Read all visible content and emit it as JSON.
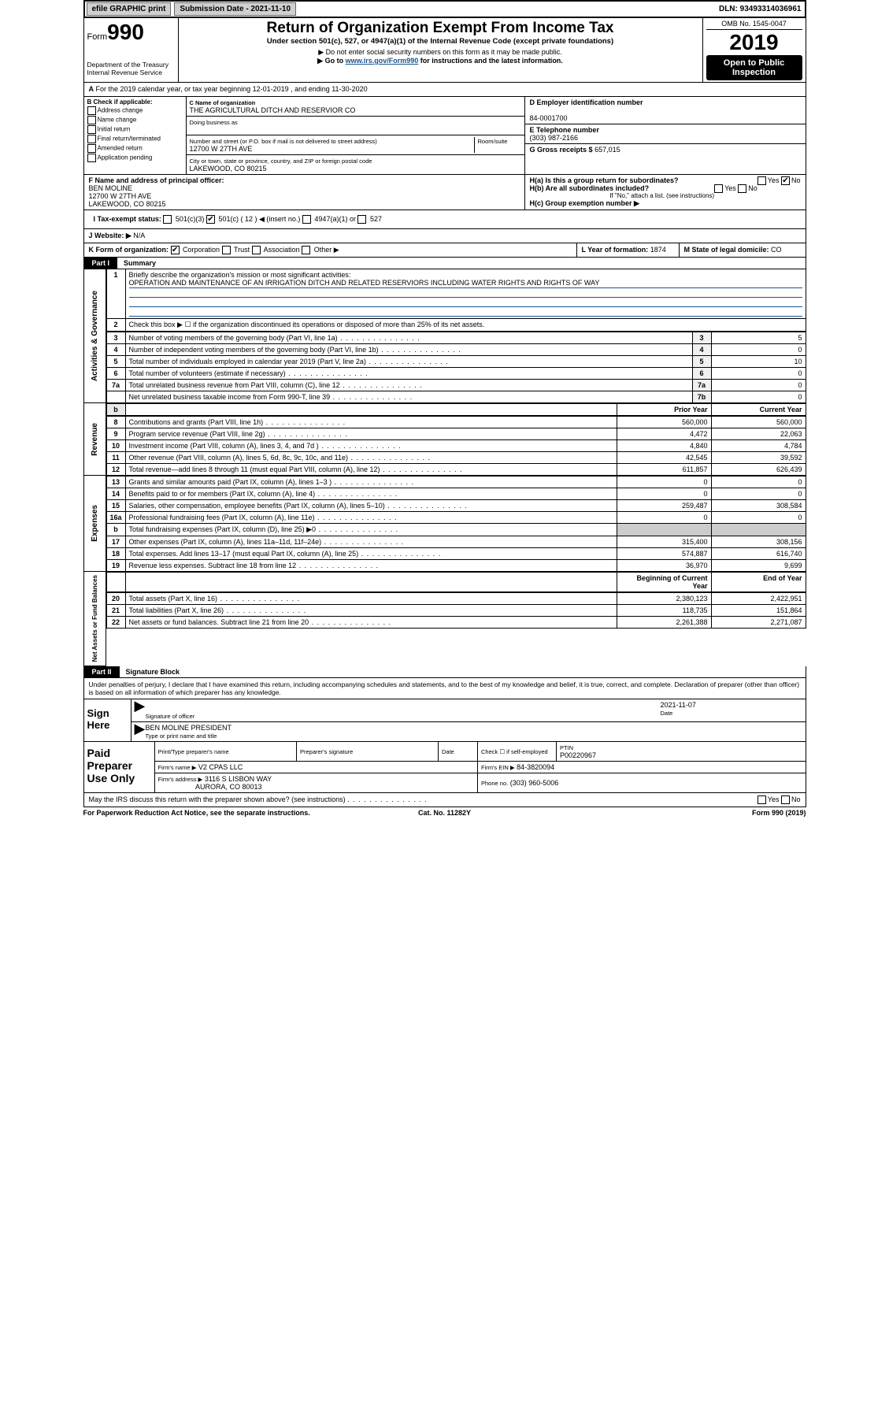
{
  "topbar": {
    "efile": "efile GRAPHIC print",
    "subdate_lbl": "Submission Date - 2021-11-10",
    "dln_lbl": "DLN: 93493314036961"
  },
  "header": {
    "form_prefix": "Form",
    "form_num": "990",
    "dept": "Department of the Treasury",
    "irs": "Internal Revenue Service",
    "title": "Return of Organization Exempt From Income Tax",
    "subtitle": "Under section 501(c), 527, or 4947(a)(1) of the Internal Revenue Code (except private foundations)",
    "note1": "▶ Do not enter social security numbers on this form as it may be made public.",
    "note2": "▶ Go to www.irs.gov/Form990 for instructions and the latest information.",
    "link": "www.irs.gov/Form990",
    "omb": "OMB No. 1545-0047",
    "year": "2019",
    "open": "Open to Public Inspection"
  },
  "periods": {
    "a_line": "For the 2019 calendar year, or tax year beginning 12-01-2019    , and ending 11-30-2020"
  },
  "boxB": {
    "hdr": "B Check if applicable:",
    "items": [
      "Address change",
      "Name change",
      "Initial return",
      "Final return/terminated",
      "Amended return",
      "Application pending"
    ]
  },
  "boxC": {
    "lbl_name": "C Name of organization",
    "org": "THE AGRICULTURAL DITCH AND RESERVIOR CO",
    "dba_lbl": "Doing business as",
    "addr_lbl": "Number and street (or P.O. box if mail is not delivered to street address)",
    "room_lbl": "Room/suite",
    "addr": "12700 W 27TH AVE",
    "city_lbl": "City or town, state or province, country, and ZIP or foreign postal code",
    "city": "LAKEWOOD, CO  80215"
  },
  "boxD": {
    "lbl": "D Employer identification number",
    "val": "84-0001700"
  },
  "boxE": {
    "lbl": "E Telephone number",
    "val": "(303) 987-2166"
  },
  "boxG": {
    "lbl": "G Gross receipts $",
    "val": "657,015"
  },
  "boxF": {
    "lbl": "F  Name and address of principal officer:",
    "name": "BEN MOLINE",
    "addr1": "12700 W 27TH AVE",
    "addr2": "LAKEWOOD, CO  80215"
  },
  "boxH": {
    "a": "H(a)  Is this a group return for subordinates?",
    "b": "H(b)  Are all subordinates included?",
    "b_note": "If \"No,\" attach a list. (see instructions)",
    "c": "H(c)  Group exemption number ▶",
    "yes": "Yes",
    "no": "No"
  },
  "rowI": {
    "lbl": "I   Tax-exempt status:",
    "o1": "501(c)(3)",
    "o2": "501(c) ( 12 ) ◀ (insert no.)",
    "o3": "4947(a)(1) or",
    "o4": "527"
  },
  "rowJ": {
    "lbl": "J   Website: ▶",
    "val": "N/A"
  },
  "rowK": {
    "lbl": "K Form of organization:",
    "o1": "Corporation",
    "o2": "Trust",
    "o3": "Association",
    "o4": "Other ▶"
  },
  "rowL": {
    "lbl": "L Year of formation:",
    "val": "1874"
  },
  "rowM": {
    "lbl": "M State of legal domicile:",
    "val": "CO"
  },
  "part1": {
    "tab": "Part I",
    "title": "Summary"
  },
  "summary": {
    "l1_lbl": "Briefly describe the organization's mission or most significant activities:",
    "l1_val": "OPERATION AND MAINTENANCE OF AN IRRIGATION DITCH AND RELATED RESERVIORS INCLUDING WATER RIGHTS AND RIGHTS OF WAY",
    "l2": "Check this box ▶ ☐  if the organization discontinued its operations or disposed of more than 25% of its net assets.",
    "rows_gov": [
      {
        "n": "3",
        "d": "Number of voting members of the governing body (Part VI, line 1a)",
        "m": "3",
        "v": "5"
      },
      {
        "n": "4",
        "d": "Number of independent voting members of the governing body (Part VI, line 1b)",
        "m": "4",
        "v": "0"
      },
      {
        "n": "5",
        "d": "Total number of individuals employed in calendar year 2019 (Part V, line 2a)",
        "m": "5",
        "v": "10"
      },
      {
        "n": "6",
        "d": "Total number of volunteers (estimate if necessary)",
        "m": "6",
        "v": "0"
      },
      {
        "n": "7a",
        "d": "Total unrelated business revenue from Part VIII, column (C), line 12",
        "m": "7a",
        "v": "0"
      },
      {
        "n": "",
        "d": "Net unrelated business taxable income from Form 990-T, line 39",
        "m": "7b",
        "v": "0"
      }
    ],
    "hdr_prior": "Prior Year",
    "hdr_curr": "Current Year",
    "rows_rev": [
      {
        "n": "8",
        "d": "Contributions and grants (Part VIII, line 1h)",
        "p": "560,000",
        "c": "560,000"
      },
      {
        "n": "9",
        "d": "Program service revenue (Part VIII, line 2g)",
        "p": "4,472",
        "c": "22,063"
      },
      {
        "n": "10",
        "d": "Investment income (Part VIII, column (A), lines 3, 4, and 7d )",
        "p": "4,840",
        "c": "4,784"
      },
      {
        "n": "11",
        "d": "Other revenue (Part VIII, column (A), lines 5, 6d, 8c, 9c, 10c, and 11e)",
        "p": "42,545",
        "c": "39,592"
      },
      {
        "n": "12",
        "d": "Total revenue—add lines 8 through 11 (must equal Part VIII, column (A), line 12)",
        "p": "611,857",
        "c": "626,439"
      }
    ],
    "rows_exp": [
      {
        "n": "13",
        "d": "Grants and similar amounts paid (Part IX, column (A), lines 1–3 )",
        "p": "0",
        "c": "0"
      },
      {
        "n": "14",
        "d": "Benefits paid to or for members (Part IX, column (A), line 4)",
        "p": "0",
        "c": "0"
      },
      {
        "n": "15",
        "d": "Salaries, other compensation, employee benefits (Part IX, column (A), lines 5–10)",
        "p": "259,487",
        "c": "308,584"
      },
      {
        "n": "16a",
        "d": "Professional fundraising fees (Part IX, column (A), line 11e)",
        "p": "0",
        "c": "0"
      },
      {
        "n": "b",
        "d": "Total fundraising expenses (Part IX, column (D), line 25) ▶0",
        "p": "",
        "c": ""
      },
      {
        "n": "17",
        "d": "Other expenses (Part IX, column (A), lines 11a–11d, 11f–24e)",
        "p": "315,400",
        "c": "308,156"
      },
      {
        "n": "18",
        "d": "Total expenses. Add lines 13–17 (must equal Part IX, column (A), line 25)",
        "p": "574,887",
        "c": "616,740"
      },
      {
        "n": "19",
        "d": "Revenue less expenses. Subtract line 18 from line 12",
        "p": "36,970",
        "c": "9,699"
      }
    ],
    "hdr_beg": "Beginning of Current Year",
    "hdr_end": "End of Year",
    "rows_net": [
      {
        "n": "20",
        "d": "Total assets (Part X, line 16)",
        "p": "2,380,123",
        "c": "2,422,951"
      },
      {
        "n": "21",
        "d": "Total liabilities (Part X, line 26)",
        "p": "118,735",
        "c": "151,864"
      },
      {
        "n": "22",
        "d": "Net assets or fund balances. Subtract line 21 from line 20",
        "p": "2,261,388",
        "c": "2,271,087"
      }
    ]
  },
  "side_labels": {
    "gov": "Activities & Governance",
    "rev": "Revenue",
    "exp": "Expenses",
    "net": "Net Assets or Fund Balances"
  },
  "part2": {
    "tab": "Part II",
    "title": "Signature Block"
  },
  "penalties": "Under penalties of perjury, I declare that I have examined this return, including accompanying schedules and statements, and to the best of my knowledge and belief, it is true, correct, and complete. Declaration of preparer (other than officer) is based on all information of which preparer has any knowledge.",
  "sign": {
    "here": "Sign Here",
    "sig_lbl": "Signature of officer",
    "date_lbl": "Date",
    "date_val": "2021-11-07",
    "name_val": "BEN MOLINE PRESIDENT",
    "name_lbl": "Type or print name and title"
  },
  "prep": {
    "title": "Paid Preparer Use Only",
    "h1": "Print/Type preparer's name",
    "h2": "Preparer's signature",
    "h3": "Date",
    "h4": "Check ☐ if self-employed",
    "h5_lbl": "PTIN",
    "h5_val": "P00220967",
    "firm_name_lbl": "Firm's name     ▶",
    "firm_name": "V2 CPAS LLC",
    "firm_ein_lbl": "Firm's EIN ▶",
    "firm_ein": "84-3820094",
    "firm_addr_lbl": "Firm's address ▶",
    "firm_addr1": "3116 S LISBON WAY",
    "firm_addr2": "AURORA, CO  80013",
    "phone_lbl": "Phone no.",
    "phone": "(303) 960-5006"
  },
  "discuss": {
    "q": "May the IRS discuss this return with the preparer shown above? (see instructions)",
    "yes": "Yes",
    "no": "No"
  },
  "footer": {
    "l": "For Paperwork Reduction Act Notice, see the separate instructions.",
    "m": "Cat. No. 11282Y",
    "r": "Form 990 (2019)"
  }
}
